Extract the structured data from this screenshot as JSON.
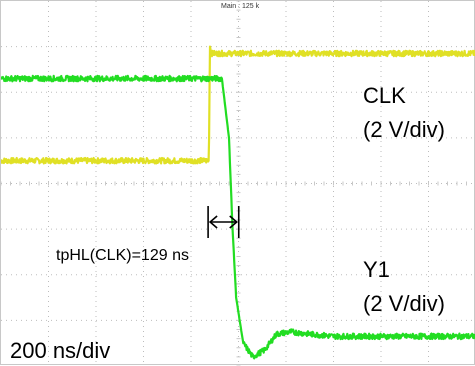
{
  "chart_data": {
    "type": "line",
    "title": "",
    "header_text": "Main : 125 k",
    "time_per_div": "200 ns/div",
    "x_unit": "ns",
    "xlim": [
      0,
      2000
    ],
    "grid": true,
    "grid_divisions": [
      10,
      8
    ],
    "series": [
      {
        "name": "CLK",
        "scale_label": "(2 V/div)",
        "color": "#e0e025",
        "x": [
          0,
          865,
          875,
          880,
          885,
          2000
        ],
        "y_div": [
          4.5,
          4.5,
          4.5,
          7.0,
          6.85,
          6.85
        ]
      },
      {
        "name": "Y1",
        "scale_label": "(2 V/div)",
        "color": "#22dd22",
        "x": [
          0,
          880,
          930,
          960,
          975,
          990,
          1020,
          1060,
          1110,
          1160,
          1220,
          1300,
          1400,
          2000
        ],
        "y_div": [
          6.3,
          6.3,
          6.3,
          5.0,
          3.0,
          1.5,
          0.5,
          0.2,
          0.35,
          0.7,
          0.75,
          0.7,
          0.65,
          0.65
        ]
      }
    ],
    "annotations": [
      {
        "text": "tpHL(CLK)=129 ns",
        "from_x": 872,
        "to_x": 1001
      }
    ]
  }
}
